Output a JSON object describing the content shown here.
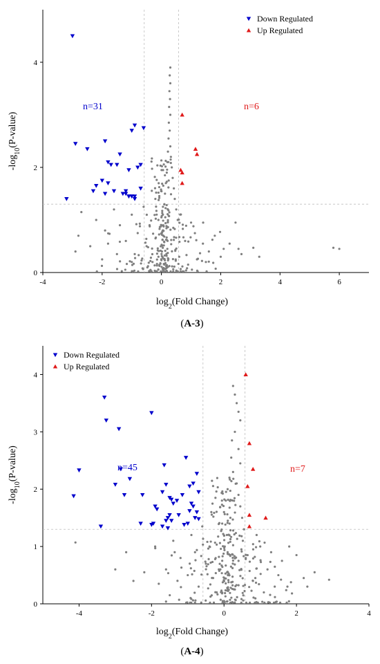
{
  "colors": {
    "down": "#0000cc",
    "up": "#e01a1a",
    "ns": "#7f7f7f",
    "ref": "#bdbdbd"
  },
  "chart_data": [
    {
      "type": "scatter",
      "caption": {
        "open": "(",
        "label": "A-3",
        "close": ")"
      },
      "xlabel": {
        "base": "log",
        "sub": "2",
        "rest": "(Fold Change)"
      },
      "ylabel": {
        "base": "-log",
        "sub": "10",
        "rest": "(P-value)"
      },
      "xlim": [
        -4,
        7
      ],
      "ylim": [
        0,
        5
      ],
      "xticks": [
        -4,
        -2,
        0,
        2,
        4,
        6
      ],
      "yticks": [
        0,
        2,
        4
      ],
      "thresholds": {
        "x": [
          -0.58,
          0.58
        ],
        "y": 1.3
      },
      "legend": {
        "down": "Down Regulated",
        "up": "Up Regulated",
        "position": "top-right"
      },
      "counts": {
        "down": "n=31",
        "up": "n=6"
      },
      "series": [
        {
          "name": "Down Regulated",
          "role": "down",
          "x": [
            -3.0,
            -2.9,
            -2.5,
            -1.9,
            -1.0,
            -0.9,
            -0.6,
            -1.4,
            -1.8,
            -1.7,
            -2.0,
            -2.3,
            -1.1,
            -1.2,
            -0.8,
            -3.2,
            -2.2,
            -1.9,
            -1.8,
            -1.6,
            -1.3,
            -1.1,
            -1.0,
            -0.9,
            -0.7,
            -1.5,
            -1.2,
            -0.7,
            -0.9,
            -1.0,
            -1.1
          ],
          "y": [
            4.5,
            2.45,
            2.35,
            2.5,
            2.7,
            2.8,
            2.75,
            2.25,
            2.1,
            2.05,
            1.75,
            1.55,
            1.95,
            1.5,
            2.0,
            1.4,
            1.65,
            1.5,
            1.7,
            1.55,
            1.5,
            1.45,
            1.45,
            1.45,
            1.6,
            2.05,
            1.55,
            2.05,
            1.4,
            1.45,
            1.45
          ]
        },
        {
          "name": "Up Regulated",
          "role": "up",
          "x": [
            0.7,
            1.15,
            1.2,
            0.65,
            0.7,
            0.7
          ],
          "y": [
            3.0,
            2.35,
            2.25,
            1.95,
            1.9,
            1.7
          ]
        }
      ],
      "ns_points": {
        "spine": [
          [
            0.3,
            3.9
          ],
          [
            0.28,
            3.75
          ],
          [
            0.3,
            3.6
          ],
          [
            0.27,
            3.45
          ],
          [
            0.29,
            3.3
          ],
          [
            0.26,
            3.15
          ],
          [
            0.3,
            3.0
          ],
          [
            0.25,
            2.85
          ],
          [
            0.28,
            2.7
          ],
          [
            0.24,
            2.55
          ],
          [
            0.3,
            2.4
          ],
          [
            0.22,
            2.3
          ],
          [
            0.32,
            2.2
          ],
          [
            0.2,
            2.1
          ],
          [
            0.35,
            2.0
          ],
          [
            0.18,
            1.9
          ],
          [
            0.38,
            1.8
          ],
          [
            0.15,
            1.7
          ],
          [
            0.42,
            1.6
          ],
          [
            0.12,
            1.5
          ],
          [
            0.45,
            1.4
          ],
          [
            0.1,
            1.3
          ],
          [
            0.5,
            1.2
          ],
          [
            0.05,
            1.1
          ],
          [
            0.55,
            1.0
          ]
        ],
        "extra": [
          [
            -2.7,
            1.15
          ],
          [
            -2.9,
            0.4
          ],
          [
            -2.2,
            1.0
          ],
          [
            -1.9,
            0.8
          ],
          [
            -1.8,
            0.55
          ],
          [
            -1.6,
            1.2
          ],
          [
            -1.4,
            0.9
          ],
          [
            -1.2,
            0.6
          ],
          [
            -1.0,
            1.1
          ],
          [
            -0.9,
            0.35
          ],
          [
            -0.8,
            0.75
          ],
          [
            -0.6,
            1.25
          ],
          [
            -0.5,
            0.5
          ],
          [
            -0.4,
            0.9
          ],
          [
            -0.3,
            0.2
          ],
          [
            -0.2,
            0.65
          ],
          [
            -0.1,
            0.3
          ],
          [
            0.0,
            1.05
          ],
          [
            0.1,
            0.15
          ],
          [
            0.2,
            0.45
          ],
          [
            0.4,
            0.85
          ],
          [
            0.6,
            0.3
          ],
          [
            0.8,
            0.6
          ],
          [
            1.0,
            0.95
          ],
          [
            1.2,
            0.25
          ],
          [
            1.4,
            0.55
          ],
          [
            1.6,
            0.4
          ],
          [
            1.8,
            0.7
          ],
          [
            2.1,
            0.45
          ],
          [
            2.5,
            0.95
          ],
          [
            2.6,
            0.45
          ],
          [
            2.7,
            0.35
          ],
          [
            3.1,
            0.47
          ],
          [
            5.8,
            0.47
          ],
          [
            6.0,
            0.45
          ],
          [
            -2.8,
            0.7
          ],
          [
            -2.4,
            0.5
          ],
          [
            -2.0,
            0.25
          ],
          [
            -1.5,
            0.35
          ],
          [
            -1.0,
            0.2
          ],
          [
            0.9,
            0.15
          ],
          [
            1.5,
            0.2
          ],
          [
            2.0,
            0.3
          ],
          [
            2.3,
            0.55
          ],
          [
            3.3,
            0.3
          ]
        ],
        "seed": 7,
        "cloud": 260
      }
    },
    {
      "type": "scatter",
      "caption": {
        "open": "(",
        "label": "A-4",
        "close": ")"
      },
      "xlabel": {
        "base": "log",
        "sub": "2",
        "rest": "(Fold Change)"
      },
      "ylabel": {
        "base": "-log",
        "sub": "10",
        "rest": "(P-value)"
      },
      "xlim": [
        -5,
        4
      ],
      "ylim": [
        0,
        4.5
      ],
      "xticks": [
        -4,
        -2,
        0,
        2,
        4
      ],
      "yticks": [
        0,
        1,
        2,
        3,
        4
      ],
      "thresholds": {
        "x": [
          -0.58,
          0.58
        ],
        "y": 1.3
      },
      "legend": {
        "down": "Down Regulated",
        "up": "Up Regulated",
        "position": "top-left"
      },
      "counts": {
        "down": "n=45",
        "up": "n=7"
      },
      "series": [
        {
          "name": "Down Regulated",
          "role": "down",
          "x": [
            -3.3,
            -3.25,
            -2.0,
            -2.9,
            -4.0,
            -4.15,
            -3.4,
            -2.85,
            -2.6,
            -3.0,
            -2.75,
            -2.25,
            -1.65,
            -1.05,
            -1.6,
            -1.7,
            -1.5,
            -1.45,
            -1.3,
            -1.15,
            -0.95,
            -0.85,
            -0.75,
            -0.7,
            -0.9,
            -1.5,
            -1.55,
            -1.6,
            -1.9,
            -2.3,
            -1.7,
            -1.85,
            -1.95,
            -1.4,
            -1.25,
            -1.0,
            -0.8,
            -0.85,
            -0.75,
            -0.7,
            -0.95,
            -1.1,
            -1.45,
            -1.55,
            -2.0
          ],
          "y": [
            3.6,
            3.2,
            3.33,
            3.05,
            2.33,
            1.88,
            1.35,
            2.35,
            2.18,
            2.08,
            1.9,
            1.9,
            2.42,
            2.55,
            2.08,
            1.95,
            1.85,
            1.82,
            1.8,
            1.9,
            2.05,
            2.1,
            2.27,
            1.95,
            1.75,
            1.55,
            1.5,
            1.45,
            1.7,
            1.4,
            1.35,
            1.65,
            1.4,
            1.75,
            1.55,
            1.4,
            1.5,
            1.7,
            1.6,
            1.48,
            1.62,
            1.38,
            1.45,
            1.32,
            1.38
          ]
        },
        {
          "name": "Up Regulated",
          "role": "up",
          "x": [
            0.6,
            0.7,
            0.8,
            0.65,
            0.7,
            1.15,
            0.7
          ],
          "y": [
            4.0,
            2.8,
            2.35,
            2.05,
            1.55,
            1.5,
            1.35
          ]
        }
      ],
      "ns_points": {
        "spine": [
          [
            0.25,
            3.8
          ],
          [
            0.3,
            3.65
          ],
          [
            0.35,
            3.5
          ],
          [
            0.4,
            3.35
          ],
          [
            0.45,
            3.2
          ],
          [
            0.3,
            3.0
          ],
          [
            0.22,
            2.85
          ],
          [
            0.4,
            2.7
          ],
          [
            0.2,
            2.55
          ],
          [
            0.45,
            2.45
          ],
          [
            0.25,
            2.3
          ],
          [
            0.15,
            2.2
          ],
          [
            0.35,
            2.1
          ],
          [
            0.1,
            2.0
          ],
          [
            0.4,
            1.9
          ],
          [
            0.05,
            1.8
          ],
          [
            0.45,
            1.7
          ],
          [
            0.0,
            1.6
          ],
          [
            0.5,
            1.5
          ],
          [
            -0.05,
            1.4
          ],
          [
            0.55,
            1.3
          ],
          [
            0.08,
            1.2
          ],
          [
            0.52,
            1.1
          ],
          [
            0.02,
            1.0
          ],
          [
            0.48,
            0.95
          ]
        ],
        "extra": [
          [
            -4.1,
            1.07
          ],
          [
            -2.7,
            0.9
          ],
          [
            -1.9,
            1.0
          ],
          [
            -1.6,
            0.6
          ],
          [
            -1.4,
            1.1
          ],
          [
            -1.2,
            0.8
          ],
          [
            -1.0,
            0.5
          ],
          [
            -0.9,
            1.2
          ],
          [
            -0.7,
            0.3
          ],
          [
            -0.5,
            0.7
          ],
          [
            -0.4,
            1.0
          ],
          [
            -0.3,
            0.45
          ],
          [
            -0.2,
            0.2
          ],
          [
            -0.1,
            0.6
          ],
          [
            0.1,
            0.9
          ],
          [
            0.3,
            0.25
          ],
          [
            0.6,
            0.8
          ],
          [
            0.8,
            0.4
          ],
          [
            1.0,
            1.0
          ],
          [
            1.2,
            0.6
          ],
          [
            1.4,
            0.3
          ],
          [
            1.6,
            0.75
          ],
          [
            1.8,
            1.0
          ],
          [
            2.0,
            0.85
          ],
          [
            2.2,
            0.45
          ],
          [
            2.5,
            0.55
          ],
          [
            2.9,
            0.42
          ],
          [
            -2.2,
            0.55
          ],
          [
            -1.8,
            0.35
          ],
          [
            -0.8,
            0.9
          ],
          [
            1.1,
            0.2
          ],
          [
            1.5,
            0.5
          ],
          [
            -0.6,
            1.35
          ],
          [
            -0.35,
            1.6
          ],
          [
            0.9,
            1.2
          ],
          [
            -3.0,
            0.6
          ],
          [
            -2.5,
            0.4
          ],
          [
            1.3,
            0.9
          ],
          [
            1.75,
            0.3
          ],
          [
            2.3,
            0.3
          ]
        ],
        "seed": 13,
        "cloud": 280
      }
    }
  ]
}
